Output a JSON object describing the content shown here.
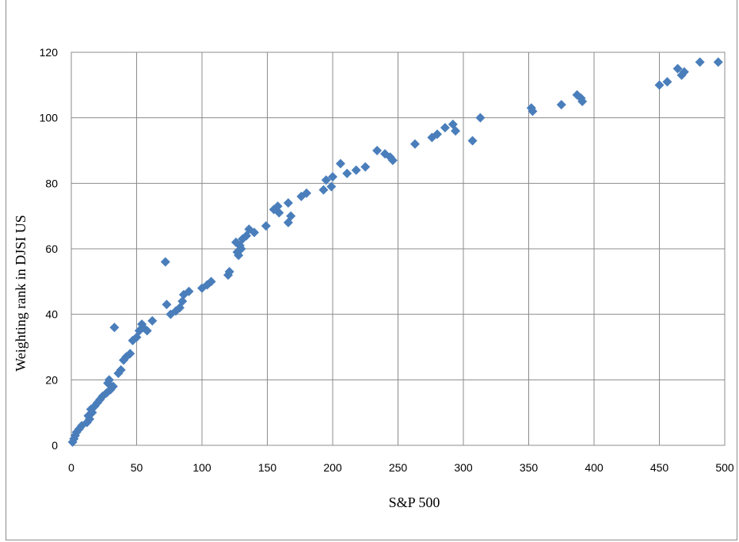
{
  "chart_data": {
    "type": "scatter",
    "title": "",
    "xlabel": "S&P 500",
    "ylabel": "Weighting rank in DJSI US",
    "xlim": [
      0,
      500
    ],
    "ylim": [
      0,
      120
    ],
    "x_ticks": [
      0,
      50,
      100,
      150,
      200,
      250,
      300,
      350,
      400,
      450,
      500
    ],
    "y_ticks": [
      0,
      20,
      40,
      60,
      80,
      100,
      120
    ],
    "grid": true,
    "legend": "none",
    "marker": "diamond",
    "marker_color": "#4a7ebb",
    "series": [
      {
        "points": [
          [
            1,
            1
          ],
          [
            2,
            2
          ],
          [
            3,
            3
          ],
          [
            4,
            4
          ],
          [
            6,
            5
          ],
          [
            8,
            6
          ],
          [
            12,
            7
          ],
          [
            14,
            8
          ],
          [
            13,
            9
          ],
          [
            16,
            10
          ],
          [
            15,
            11
          ],
          [
            18,
            12
          ],
          [
            20,
            13
          ],
          [
            22,
            14
          ],
          [
            24,
            15
          ],
          [
            27,
            16
          ],
          [
            30,
            17
          ],
          [
            32,
            18
          ],
          [
            28,
            19
          ],
          [
            29,
            20
          ],
          [
            36,
            22
          ],
          [
            38,
            23
          ],
          [
            33,
            36
          ],
          [
            40,
            26
          ],
          [
            42,
            27
          ],
          [
            45,
            28
          ],
          [
            47,
            32
          ],
          [
            50,
            33
          ],
          [
            52,
            35
          ],
          [
            55,
            36
          ],
          [
            54,
            37
          ],
          [
            58,
            35
          ],
          [
            62,
            38
          ],
          [
            73,
            43
          ],
          [
            72,
            56
          ],
          [
            76,
            40
          ],
          [
            80,
            41
          ],
          [
            83,
            42
          ],
          [
            85,
            44
          ],
          [
            86,
            46
          ],
          [
            90,
            47
          ],
          [
            100,
            48
          ],
          [
            104,
            49
          ],
          [
            107,
            50
          ],
          [
            120,
            52
          ],
          [
            121,
            53
          ],
          [
            126,
            62
          ],
          [
            127,
            59
          ],
          [
            128,
            58
          ],
          [
            130,
            60
          ],
          [
            129,
            61
          ],
          [
            131,
            63
          ],
          [
            134,
            64
          ],
          [
            136,
            66
          ],
          [
            140,
            65
          ],
          [
            149,
            67
          ],
          [
            155,
            72
          ],
          [
            158,
            73
          ],
          [
            159,
            71
          ],
          [
            166,
            68
          ],
          [
            166,
            74
          ],
          [
            168,
            70
          ],
          [
            176,
            76
          ],
          [
            180,
            77
          ],
          [
            193,
            78
          ],
          [
            195,
            81
          ],
          [
            199,
            79
          ],
          [
            200,
            82
          ],
          [
            206,
            86
          ],
          [
            211,
            83
          ],
          [
            218,
            84
          ],
          [
            225,
            85
          ],
          [
            234,
            90
          ],
          [
            240,
            89
          ],
          [
            244,
            88
          ],
          [
            246,
            87
          ],
          [
            263,
            92
          ],
          [
            276,
            94
          ],
          [
            280,
            95
          ],
          [
            286,
            97
          ],
          [
            292,
            98
          ],
          [
            294,
            96
          ],
          [
            307,
            93
          ],
          [
            313,
            100
          ],
          [
            352,
            103
          ],
          [
            353,
            102
          ],
          [
            375,
            104
          ],
          [
            387,
            107
          ],
          [
            390,
            106
          ],
          [
            391,
            105
          ],
          [
            450,
            110
          ],
          [
            456,
            111
          ],
          [
            464,
            115
          ],
          [
            467,
            113
          ],
          [
            469,
            114
          ],
          [
            481,
            117
          ],
          [
            495,
            117
          ]
        ]
      }
    ]
  }
}
